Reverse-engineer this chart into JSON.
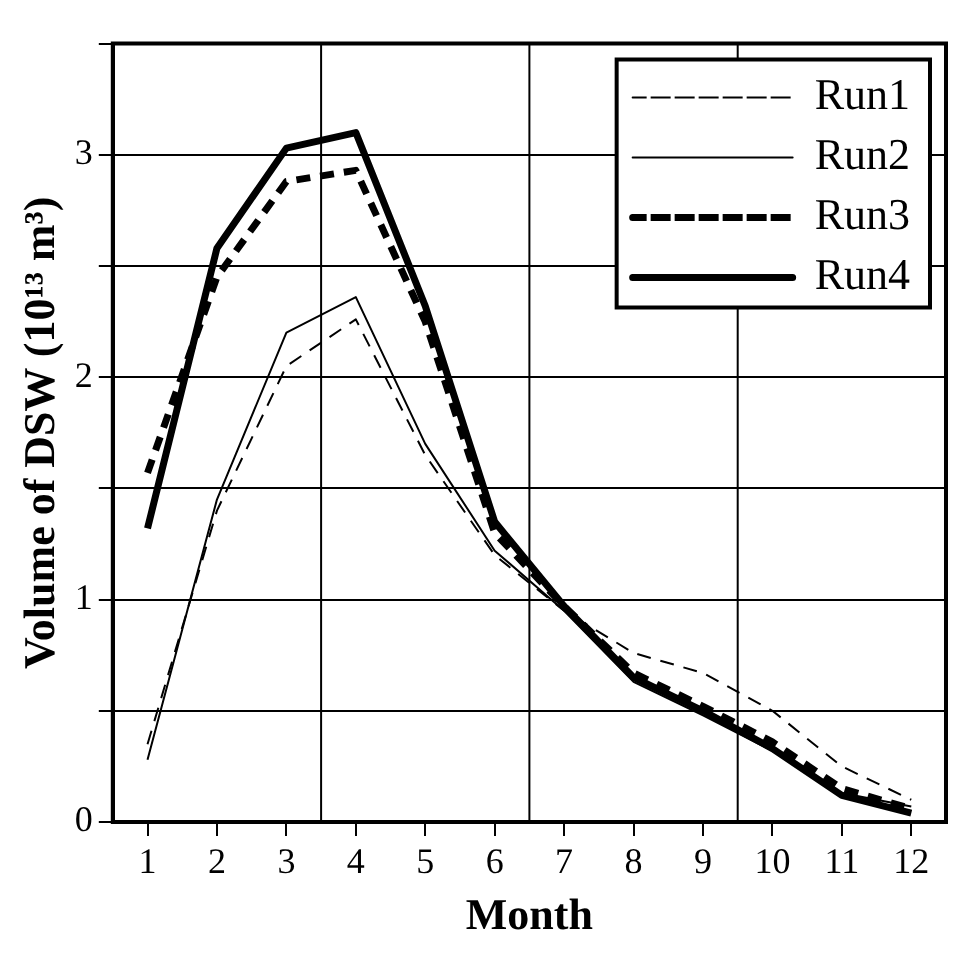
{
  "chart_data": {
    "type": "line",
    "xlabel": "Month",
    "ylabel": "Volume of DSW (10¹³ m³)",
    "x": [
      1,
      2,
      3,
      4,
      5,
      6,
      7,
      8,
      9,
      10,
      11,
      12
    ],
    "series": [
      {
        "name": "Run1",
        "color": "#000000",
        "line_style": "dashed",
        "values": [
          0.35,
          1.4,
          2.05,
          2.26,
          1.65,
          1.2,
          0.95,
          0.76,
          0.67,
          0.5,
          0.25,
          0.1
        ]
      },
      {
        "name": "Run2",
        "color": "#000000",
        "line_style": "solid",
        "values": [
          0.28,
          1.45,
          2.2,
          2.36,
          1.7,
          1.22,
          0.95,
          0.63,
          0.48,
          0.32,
          0.13,
          0.07
        ]
      },
      {
        "name": "Run3",
        "color": "#000000",
        "line_style": "dashed",
        "values": [
          1.57,
          2.45,
          2.88,
          2.93,
          2.25,
          1.3,
          0.97,
          0.67,
          0.52,
          0.36,
          0.15,
          0.06
        ]
      },
      {
        "name": "Run4",
        "color": "#000000",
        "line_style": "solid",
        "values": [
          1.32,
          2.58,
          3.03,
          3.1,
          2.32,
          1.35,
          0.97,
          0.65,
          0.5,
          0.33,
          0.12,
          0.04
        ]
      }
    ],
    "xlim": [
      0.5,
      12.5
    ],
    "xticks": [
      1,
      2,
      3,
      4,
      5,
      6,
      7,
      8,
      9,
      10,
      11,
      12
    ],
    "ylim": [
      0,
      3.5
    ],
    "yticks": [
      0,
      {
        "value": 0.5,
        "label": null
      },
      1,
      {
        "value": 1.5,
        "label": null
      },
      2,
      {
        "value": 2.5,
        "label": null
      },
      3,
      {
        "value": 3.5,
        "label": null
      }
    ],
    "ref_lines": [
      {
        "axis": "x",
        "value": 3.5,
        "color": "#000000"
      },
      {
        "axis": "x",
        "value": 6.5,
        "color": "#000000"
      },
      {
        "axis": "x",
        "value": 9.5,
        "color": "#000000"
      }
    ],
    "grid": "y",
    "legend": "top right",
    "marker": "none"
  }
}
